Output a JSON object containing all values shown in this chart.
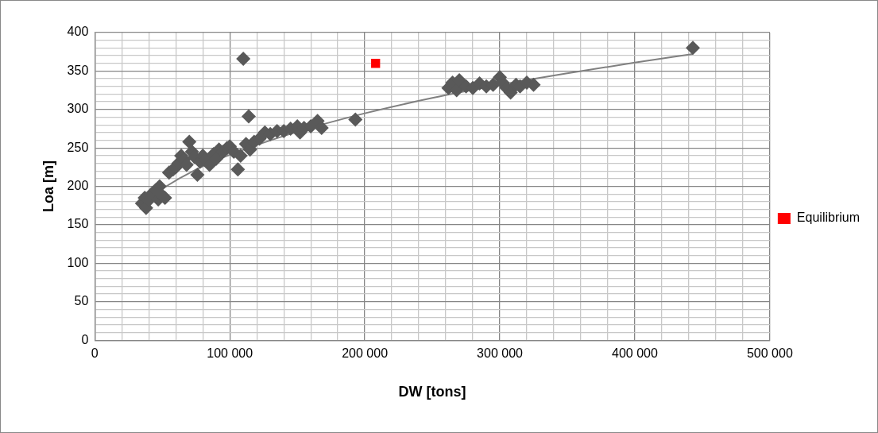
{
  "chart_data": {
    "type": "scatter",
    "xlabel": "DW [tons]",
    "ylabel": "Loa [m]",
    "xlim": [
      0,
      500000
    ],
    "ylim": [
      0,
      400
    ],
    "xticks": [
      {
        "value": 0,
        "label": "0"
      },
      {
        "value": 20000,
        "label": null
      },
      {
        "value": 40000,
        "label": null
      },
      {
        "value": 60000,
        "label": null
      },
      {
        "value": 80000,
        "label": null
      },
      {
        "value": 100000,
        "label": "100 000"
      },
      {
        "value": 120000,
        "label": null
      },
      {
        "value": 140000,
        "label": null
      },
      {
        "value": 160000,
        "label": null
      },
      {
        "value": 180000,
        "label": null
      },
      {
        "value": 200000,
        "label": "200 000"
      },
      {
        "value": 220000,
        "label": null
      },
      {
        "value": 240000,
        "label": null
      },
      {
        "value": 260000,
        "label": null
      },
      {
        "value": 280000,
        "label": null
      },
      {
        "value": 300000,
        "label": "300 000"
      },
      {
        "value": 320000,
        "label": null
      },
      {
        "value": 340000,
        "label": null
      },
      {
        "value": 360000,
        "label": null
      },
      {
        "value": 380000,
        "label": null
      },
      {
        "value": 400000,
        "label": "400 000"
      },
      {
        "value": 420000,
        "label": null
      },
      {
        "value": 440000,
        "label": null
      },
      {
        "value": 460000,
        "label": null
      },
      {
        "value": 480000,
        "label": null
      },
      {
        "value": 500000,
        "label": "500 000"
      }
    ],
    "yticks": [
      0,
      {
        "value": 10,
        "label": null
      },
      {
        "value": 20,
        "label": null
      },
      {
        "value": 30,
        "label": null
      },
      {
        "value": 40,
        "label": null
      },
      50,
      {
        "value": 60,
        "label": null
      },
      {
        "value": 70,
        "label": null
      },
      {
        "value": 80,
        "label": null
      },
      {
        "value": 90,
        "label": null
      },
      100,
      {
        "value": 110,
        "label": null
      },
      {
        "value": 120,
        "label": null
      },
      {
        "value": 130,
        "label": null
      },
      {
        "value": 140,
        "label": null
      },
      150,
      {
        "value": 160,
        "label": null
      },
      {
        "value": 170,
        "label": null
      },
      {
        "value": 180,
        "label": null
      },
      {
        "value": 190,
        "label": null
      },
      200,
      {
        "value": 210,
        "label": null
      },
      {
        "value": 220,
        "label": null
      },
      {
        "value": 230,
        "label": null
      },
      {
        "value": 240,
        "label": null
      },
      250,
      {
        "value": 260,
        "label": null
      },
      {
        "value": 270,
        "label": null
      },
      {
        "value": 280,
        "label": null
      },
      {
        "value": 290,
        "label": null
      },
      300,
      {
        "value": 310,
        "label": null
      },
      {
        "value": 320,
        "label": null
      },
      {
        "value": 330,
        "label": null
      },
      {
        "value": 340,
        "label": null
      },
      350,
      {
        "value": 360,
        "label": null
      },
      {
        "value": 370,
        "label": null
      },
      {
        "value": 380,
        "label": null
      },
      {
        "value": 390,
        "label": null
      },
      400
    ],
    "grid": true,
    "legend": "right",
    "series": [
      {
        "color": "#595959",
        "marker": "diamond",
        "x": [
          35000,
          37000,
          38000,
          40000,
          42000,
          45000,
          47000,
          48000,
          50000,
          52000,
          55000,
          58000,
          60000,
          62000,
          64000,
          66000,
          68000,
          70000,
          72000,
          74000,
          76000,
          78000,
          80000,
          82000,
          85000,
          88000,
          90000,
          92000,
          95000,
          98000,
          100000,
          103000,
          106000,
          108000,
          110000,
          112000,
          114000,
          115000,
          118000,
          122000,
          126000,
          130000,
          135000,
          140000,
          145000,
          150000,
          152000,
          155000,
          160000,
          165000,
          168000,
          193000,
          262000,
          265000,
          268000,
          270000,
          275000,
          280000,
          285000,
          290000,
          295000,
          300000,
          302000,
          305000,
          308000,
          312000,
          315000,
          320000,
          325000,
          443000
        ],
        "values": [
          178,
          185,
          172,
          182,
          190,
          195,
          183,
          200,
          188,
          185,
          218,
          222,
          225,
          230,
          240,
          235,
          228,
          258,
          245,
          238,
          215,
          232,
          240,
          235,
          228,
          242,
          236,
          248,
          245,
          250,
          252,
          245,
          222,
          240,
          366,
          255,
          291,
          248,
          258,
          262,
          270,
          268,
          272,
          272,
          275,
          278,
          270,
          276,
          278,
          285,
          276,
          287,
          328,
          335,
          325,
          338,
          330,
          328,
          334,
          330,
          332,
          342,
          335,
          328,
          322,
          332,
          330,
          335,
          332,
          380
        ]
      },
      {
        "type": "line",
        "color": "#808080",
        "marker": "none",
        "x": [
          35000,
          50000,
          75000,
          100000,
          150000,
          200000,
          250000,
          300000,
          350000,
          400000,
          443000
        ],
        "values": [
          178,
          197,
          222,
          241,
          271,
          295,
          315,
          332,
          347,
          361,
          372
        ]
      },
      {
        "name": "Equilibrium",
        "color": "#ff0000",
        "marker": "square",
        "x": [
          208000
        ],
        "values": [
          360
        ]
      }
    ]
  }
}
